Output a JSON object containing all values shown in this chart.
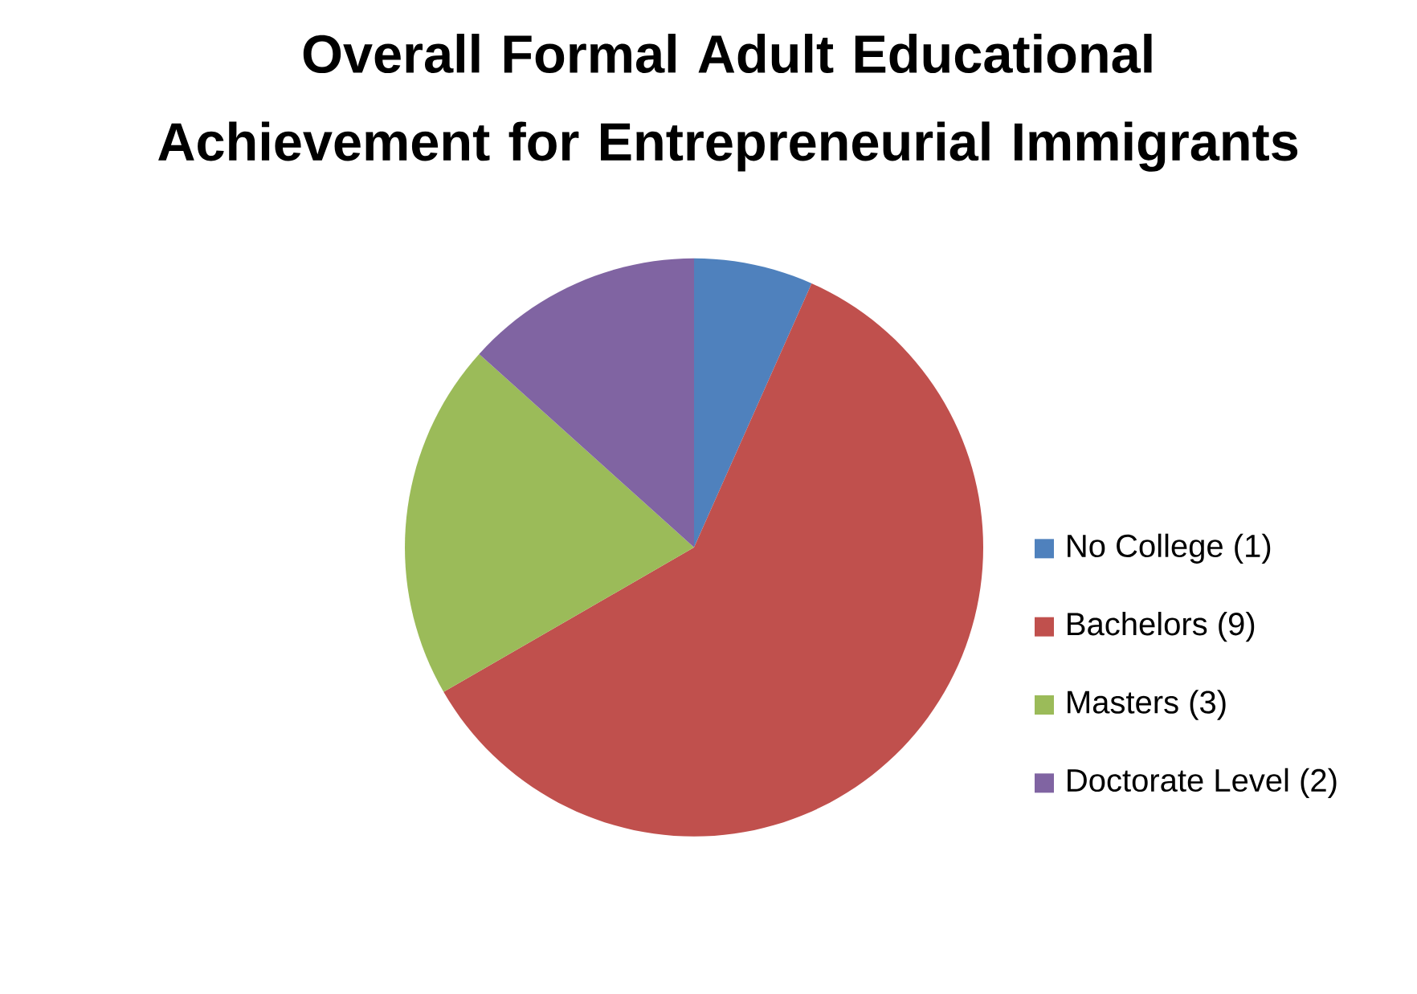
{
  "chart_data": {
    "type": "pie",
    "title": "Overall Formal Adult Educational Achievement for Entrepreneurial Immigrants",
    "categories": [
      "No College  (1)",
      "Bachelors (9)",
      "Masters (3)",
      "Doctorate Level (2)"
    ],
    "values": [
      1,
      9,
      3,
      2
    ],
    "colors": [
      "#4f81bd",
      "#c0504d",
      "#9bbb59",
      "#8064a2"
    ],
    "legend": "right"
  }
}
